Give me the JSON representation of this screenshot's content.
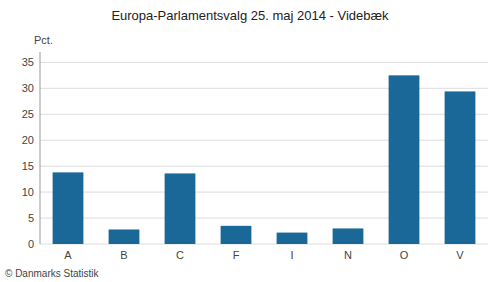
{
  "chart_data": {
    "type": "bar",
    "title": "Europa-Parlamentsvalg 25. maj 2014 - Videbæk",
    "y_label": "Pct.",
    "annotations": [
      "© Danmarks Statistik"
    ],
    "categories": [
      "A",
      "B",
      "C",
      "F",
      "I",
      "N",
      "O",
      "V"
    ],
    "values": [
      13.8,
      2.8,
      13.6,
      3.5,
      2.2,
      3.0,
      32.5,
      29.4
    ],
    "color": "#1a6898",
    "ylim": [
      0,
      37
    ],
    "yticks": [
      0,
      5,
      10,
      15,
      20,
      25,
      30,
      35
    ],
    "grid": true
  }
}
